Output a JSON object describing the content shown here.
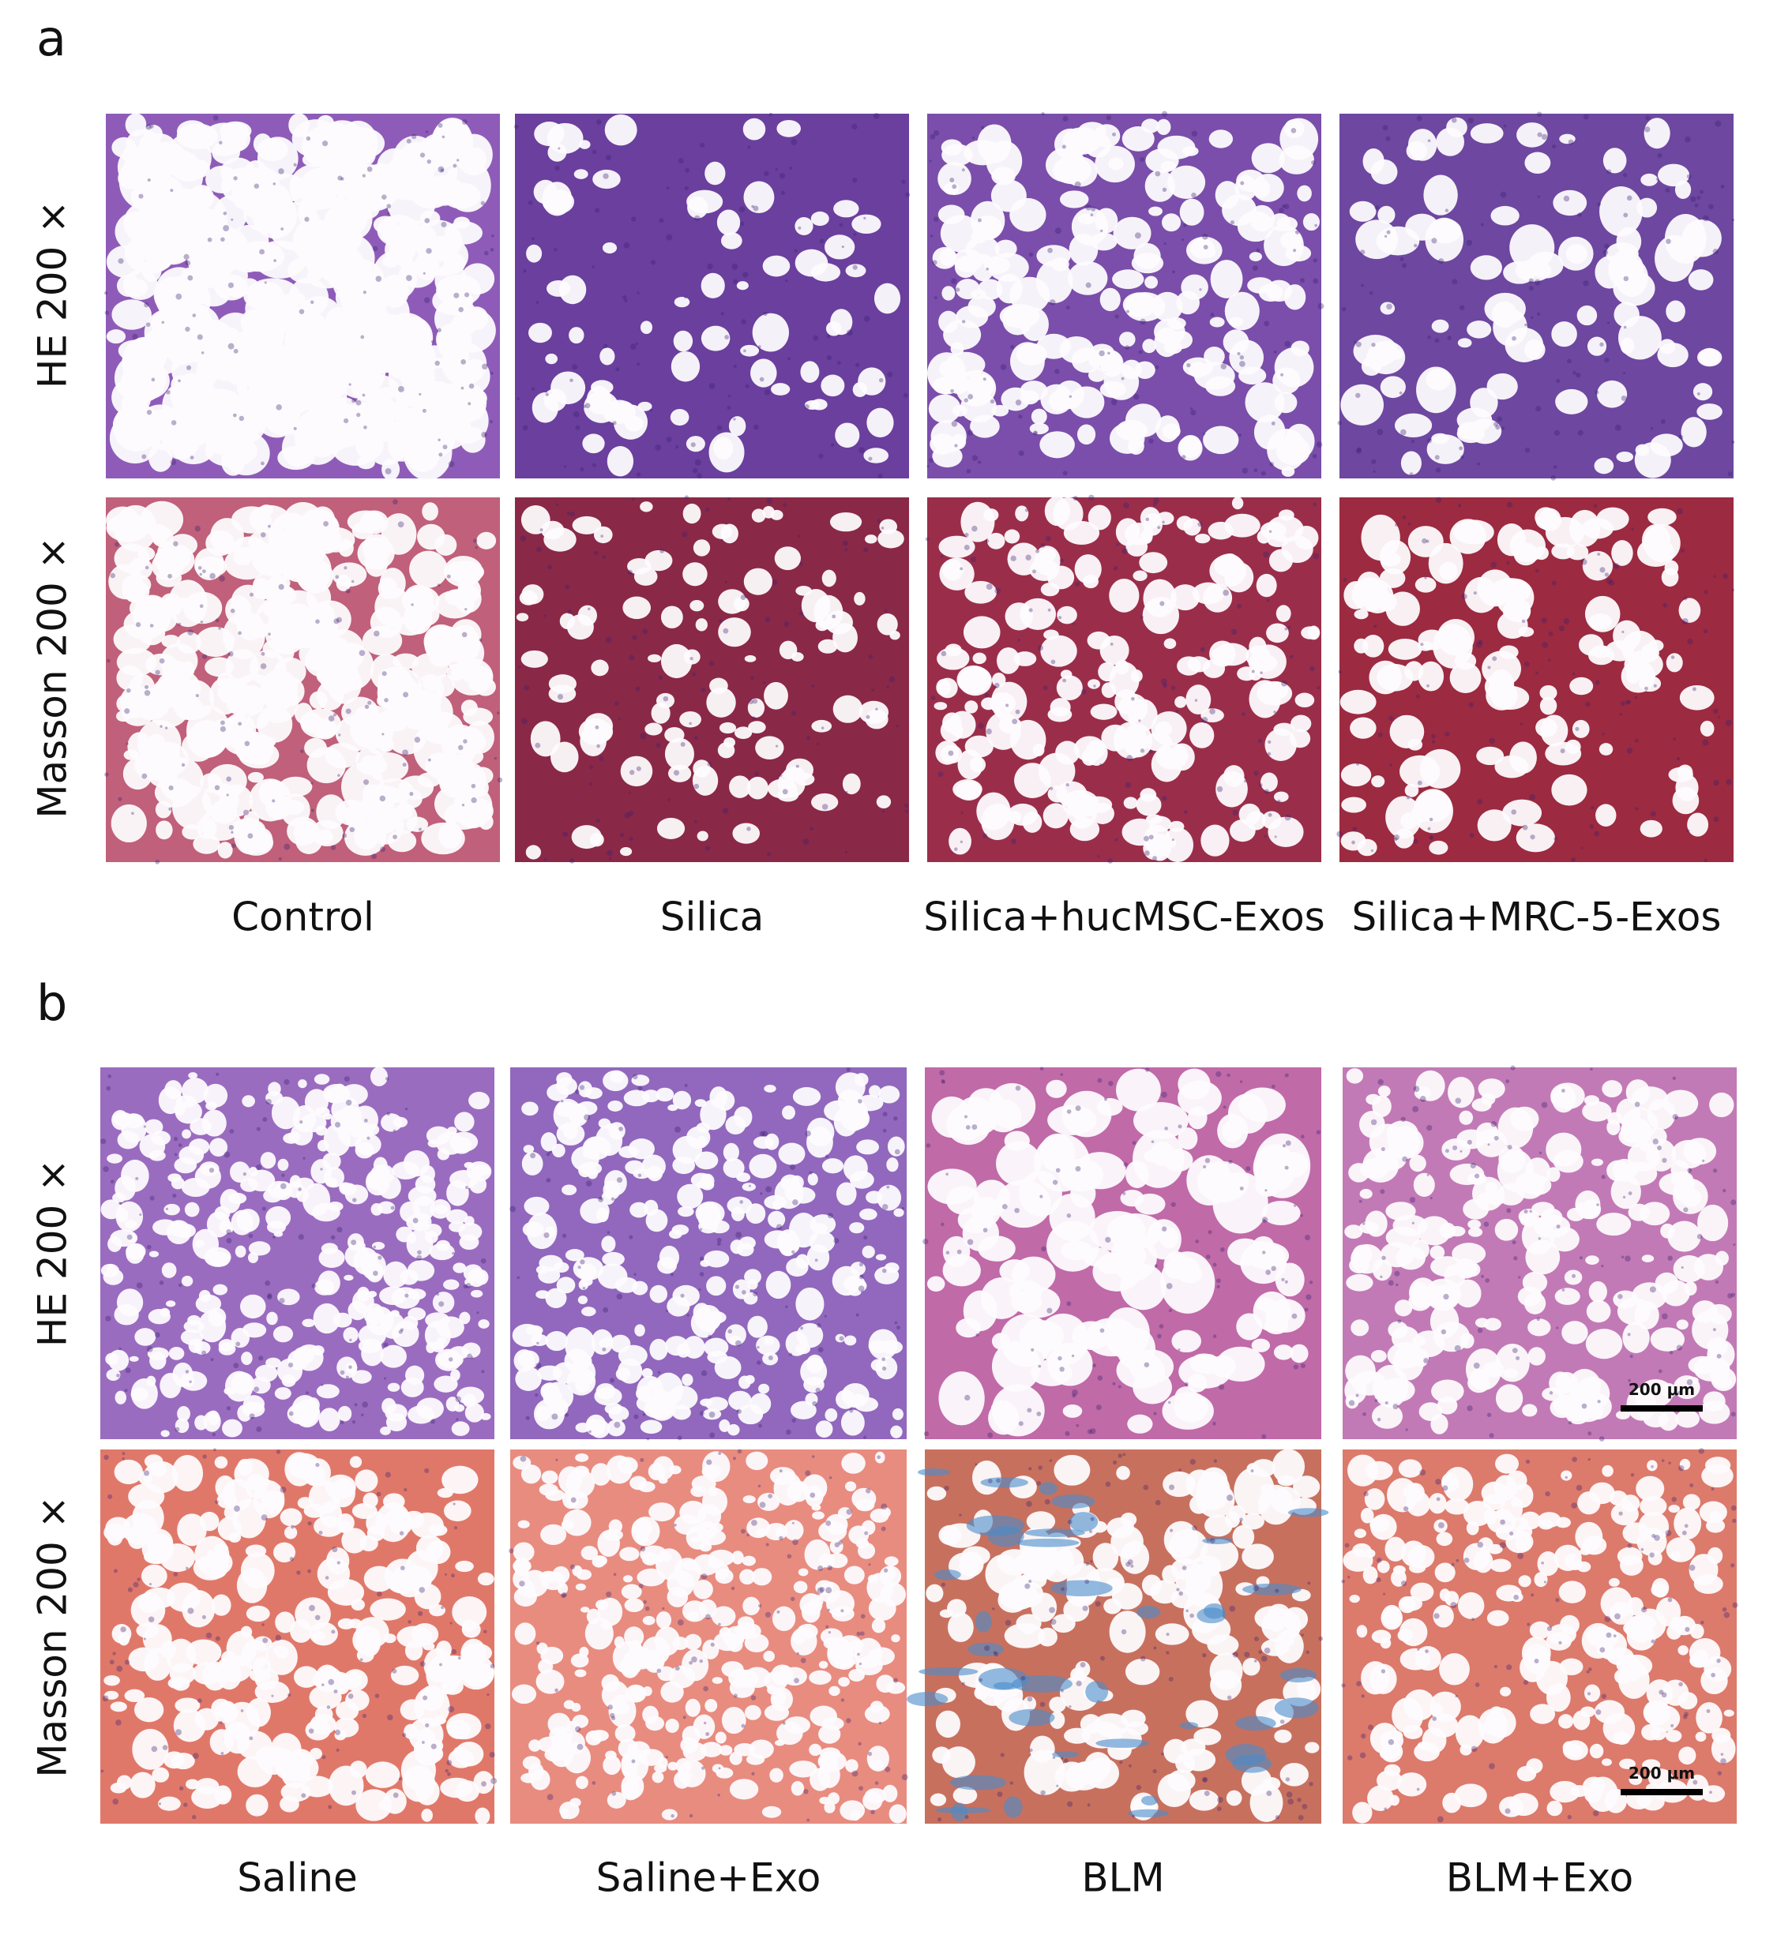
{
  "panels": [
    {
      "label": "a",
      "row_labels": [
        "HE 200 ×",
        "Masson 200 ×"
      ],
      "column_labels": [
        "Control",
        "Silica",
        "Silica+hucMSC-Exos",
        "Silica+MRC-5-Exos"
      ]
    },
    {
      "label": "b",
      "row_labels": [
        "HE 200 ×",
        "Masson 200 ×"
      ],
      "column_labels": [
        "Saline",
        "Saline+Exo",
        "BLM",
        "BLM+Exo"
      ],
      "scale_bars": [
        "200 μm",
        "200 μm"
      ]
    }
  ]
}
